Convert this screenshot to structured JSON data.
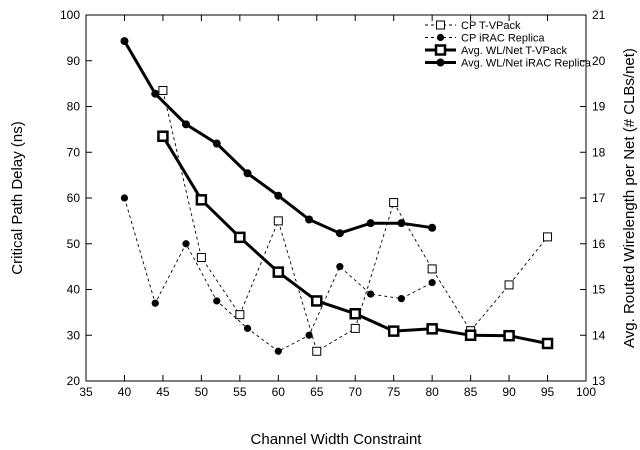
{
  "chart_data": {
    "type": "line",
    "xlabel": "Channel Width Constraint",
    "ylabel_left": "Critical Path Delay (ns)",
    "ylabel_right": "Avg. Routed Wirelength per Net (# CLBs/net)",
    "xlim": [
      35,
      100
    ],
    "ylim_left": [
      20,
      100
    ],
    "ylim_right": [
      13,
      21
    ],
    "x_ticks": [
      "35",
      "40",
      "45",
      "50",
      "55",
      "60",
      "65",
      "70",
      "75",
      "80",
      "85",
      "90",
      "95",
      "100"
    ],
    "y_ticks_left": [
      "20",
      "30",
      "40",
      "50",
      "60",
      "70",
      "80",
      "90",
      "100"
    ],
    "y_ticks_right": [
      "13",
      "14",
      "15",
      "16",
      "17",
      "18",
      "19",
      "20",
      "21"
    ],
    "grid": false,
    "legend_position": "top-right",
    "series": [
      {
        "name": "CP T-VPack",
        "axis": "left",
        "line": "dashed",
        "marker": "open-square",
        "points": [
          [
            45,
            83.5
          ],
          [
            50,
            47
          ],
          [
            55,
            34.5
          ],
          [
            60,
            55
          ],
          [
            65,
            26.5
          ],
          [
            70,
            31.5
          ],
          [
            75,
            59
          ],
          [
            80,
            44.5
          ],
          [
            85,
            31
          ],
          [
            90,
            41
          ],
          [
            95,
            51.5
          ]
        ]
      },
      {
        "name": "CP iRAC Replica",
        "axis": "left",
        "line": "dashed",
        "marker": "filled-circle",
        "points": [
          [
            40,
            60
          ],
          [
            44,
            37
          ],
          [
            48,
            50
          ],
          [
            52,
            37.5
          ],
          [
            56,
            31.5
          ],
          [
            60,
            26.5
          ],
          [
            64,
            30
          ],
          [
            68,
            45
          ],
          [
            72,
            39
          ],
          [
            76,
            38
          ],
          [
            80,
            41.5
          ]
        ]
      },
      {
        "name": "Avg. WL/Net T-VPack",
        "axis": "right",
        "line": "solid-bold",
        "marker": "open-square",
        "points": [
          [
            45,
            18.35
          ],
          [
            50,
            16.96
          ],
          [
            55,
            16.14
          ],
          [
            60,
            15.38
          ],
          [
            65,
            14.75
          ],
          [
            70,
            14.47
          ],
          [
            75,
            14.09
          ],
          [
            80,
            14.14
          ],
          [
            85,
            14.0
          ],
          [
            90,
            13.99
          ],
          [
            95,
            13.82
          ]
        ]
      },
      {
        "name": "Avg. WL/Net iRAC Replica",
        "axis": "right",
        "line": "solid-bold",
        "marker": "filled-circle",
        "points": [
          [
            40,
            20.43
          ],
          [
            44,
            19.28
          ],
          [
            48,
            18.61
          ],
          [
            52,
            18.19
          ],
          [
            56,
            17.54
          ],
          [
            60,
            17.05
          ],
          [
            64,
            16.53
          ],
          [
            68,
            16.23
          ],
          [
            72,
            16.45
          ],
          [
            76,
            16.45
          ],
          [
            80,
            16.35
          ]
        ]
      }
    ]
  }
}
